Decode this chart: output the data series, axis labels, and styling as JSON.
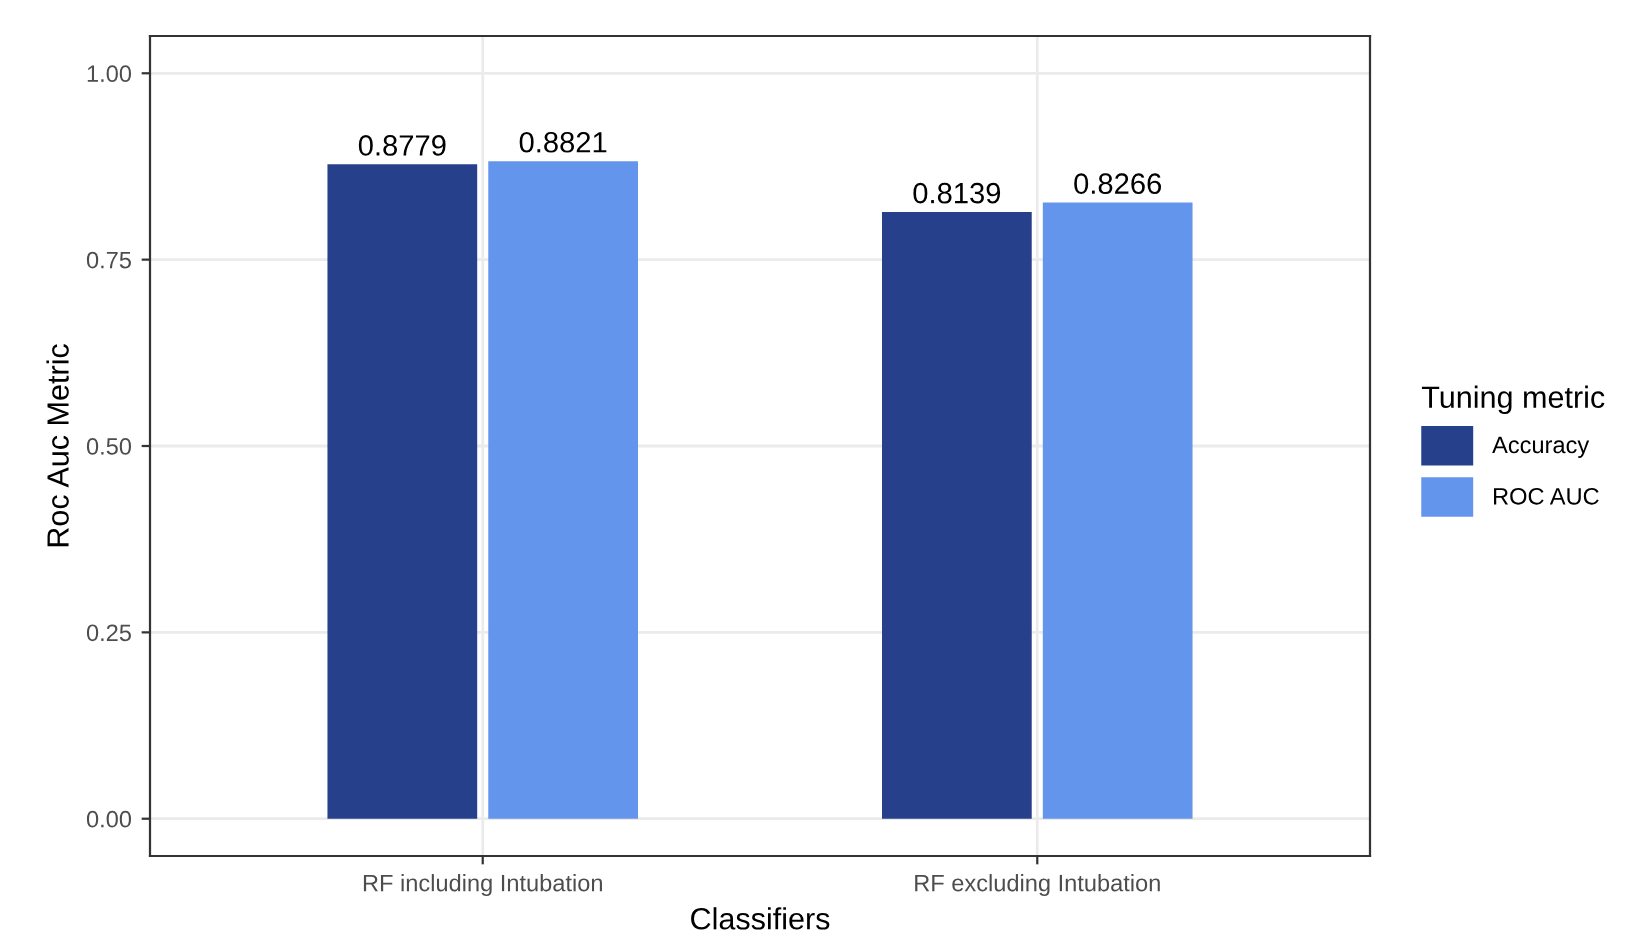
{
  "chart_data": {
    "type": "bar",
    "xlabel": "Classifiers",
    "ylabel": "Roc Auc Metric",
    "legend_title": "Tuning metric",
    "categories": [
      "RF including Intubation",
      "RF excluding Intubation"
    ],
    "series": [
      {
        "name": "Accuracy",
        "color": "#27408b",
        "values": [
          0.8779,
          0.8139
        ]
      },
      {
        "name": "ROC AUC",
        "color": "#6495ed",
        "values": [
          0.8821,
          0.8266
        ]
      }
    ],
    "ylim": [
      -0.05,
      1.05
    ],
    "yticks": [
      {
        "value": 0,
        "label": "0.00"
      },
      {
        "value": 0.25,
        "label": "0.25"
      },
      {
        "value": 0.5,
        "label": "0.50"
      },
      {
        "value": 0.75,
        "label": "0.75"
      },
      {
        "value": 1,
        "label": "1.00"
      }
    ],
    "grid": true,
    "legend": "right",
    "data_labels": true
  }
}
